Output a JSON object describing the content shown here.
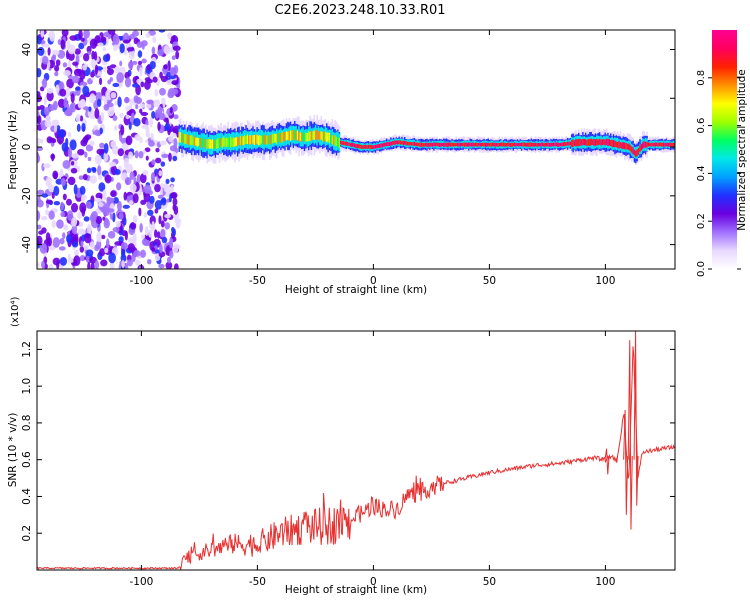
{
  "title": "C2E6.2023.248.10.33.R01",
  "chart_data": [
    {
      "type": "heatmap",
      "xlabel": "Height of straight line (km)",
      "ylabel": "Frequency (Hz)",
      "xlim": [
        -145,
        130
      ],
      "ylim": [
        -50,
        48
      ],
      "xticks": [
        -100,
        -50,
        0,
        50,
        100
      ],
      "yticks": [
        -40,
        -20,
        0,
        20,
        40
      ],
      "colorbar": {
        "label": "Normalized spectral amplitude",
        "range": [
          0,
          1
        ],
        "ticks": [
          "0.0",
          "0.2",
          "0.4",
          "0.6",
          "0.8"
        ],
        "colors": [
          "#ffffff",
          "#e8d8ff",
          "#a070ff",
          "#6a00e0",
          "#2030ff",
          "#00a0ff",
          "#00e8e8",
          "#00ff60",
          "#a0ff00",
          "#ffff00",
          "#ff9000",
          "#ff2000",
          "#ff0060",
          "#ff0090"
        ]
      },
      "regions": [
        {
          "name": "noise",
          "x_range": [
            -145,
            -84
          ],
          "freq_range": [
            -50,
            48
          ],
          "amplitude": [
            0.05,
            0.3
          ]
        },
        {
          "name": "signal",
          "x_range": [
            -84,
            130
          ],
          "center_freq": [
            [
              -84,
              4
            ],
            [
              -80,
              3
            ],
            [
              -75,
              2
            ],
            [
              -70,
              1
            ],
            [
              -65,
              2
            ],
            [
              -60,
              2
            ],
            [
              -55,
              3
            ],
            [
              -50,
              3
            ],
            [
              -45,
              3
            ],
            [
              -40,
              4
            ],
            [
              -35,
              5
            ],
            [
              -30,
              4
            ],
            [
              -25,
              5
            ],
            [
              -20,
              4
            ],
            [
              -15,
              2
            ],
            [
              -10,
              1
            ],
            [
              -5,
              0
            ],
            [
              0,
              0
            ],
            [
              5,
              1
            ],
            [
              10,
              2
            ],
            [
              20,
              1
            ],
            [
              30,
              1
            ],
            [
              50,
              1
            ],
            [
              80,
              1
            ],
            [
              90,
              2
            ],
            [
              100,
              2
            ],
            [
              105,
              1
            ],
            [
              110,
              0
            ],
            [
              113,
              -3
            ],
            [
              116,
              1
            ],
            [
              130,
              1
            ]
          ]
        }
      ]
    },
    {
      "type": "line",
      "xlabel": "Height of straight line (km)",
      "ylabel": "SNR (10 * v/v)",
      "multiplier": "(x10⁴)",
      "xlim": [
        -145,
        130
      ],
      "ylim": [
        0,
        1.3
      ],
      "xticks": [
        -100,
        -50,
        0,
        50,
        100
      ],
      "yticks": [
        0.2,
        0.4,
        0.6,
        0.8,
        1.0,
        1.2
      ],
      "color": "#e83030",
      "series": [
        {
          "x": [
            -145,
            -120,
            -100,
            -84,
            -80,
            -75,
            -70,
            -60,
            -50,
            -40,
            -30,
            -20,
            -15,
            -10,
            -5,
            0,
            5,
            10,
            15,
            20,
            25,
            30,
            40,
            50,
            60,
            70,
            80,
            90,
            95,
            100,
            103,
            105,
            108,
            110,
            112,
            114,
            116,
            120,
            125,
            130
          ],
          "y": [
            0.01,
            0.01,
            0.01,
            0.01,
            0.07,
            0.09,
            0.11,
            0.14,
            0.14,
            0.2,
            0.23,
            0.24,
            0.25,
            0.27,
            0.31,
            0.35,
            0.33,
            0.33,
            0.41,
            0.42,
            0.45,
            0.47,
            0.5,
            0.53,
            0.55,
            0.57,
            0.58,
            0.6,
            0.61,
            0.6,
            0.62,
            0.59,
            0.86,
            0.45,
            1.25,
            0.5,
            0.64,
            0.65,
            0.66,
            0.67
          ]
        }
      ],
      "spikes": [
        {
          "x": 100.5,
          "top": 0.66,
          "bottom": 0.52
        },
        {
          "x": 108.5,
          "top": 0.87,
          "bottom": 0.3
        },
        {
          "x": 110.5,
          "top": 1.25,
          "bottom": 0.22
        },
        {
          "x": 113,
          "top": 1.3,
          "bottom": 0.35
        }
      ]
    }
  ]
}
